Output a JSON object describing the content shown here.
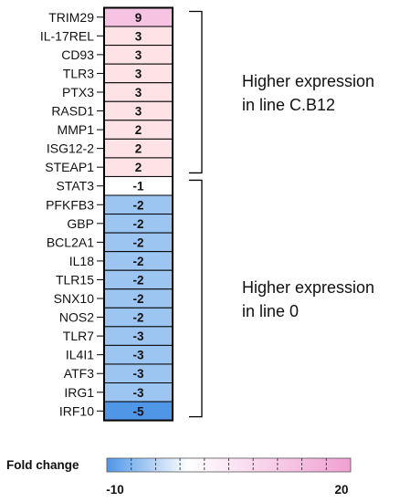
{
  "chart_data": {
    "type": "heatmap",
    "title": "",
    "genes": [
      "TRIM29",
      "IL-17REL",
      "CD93",
      "TLR3",
      "PTX3",
      "RASD1",
      "MMP1",
      "ISG12-2",
      "STEAP1",
      "STAT3",
      "PFKFB3",
      "GBP",
      "BCL2A1",
      "IL18",
      "TLR15",
      "SNX10",
      "NOS2",
      "TLR7",
      "IL4I1",
      "ATF3",
      "IRG1",
      "IRF10"
    ],
    "values": [
      9,
      3,
      3,
      3,
      3,
      3,
      2,
      2,
      2,
      -1,
      -2,
      -2,
      -2,
      -2,
      -2,
      -2,
      -2,
      -3,
      -3,
      -3,
      -3,
      -5
    ],
    "value_labels": [
      "9",
      "3",
      "3",
      "3",
      "3",
      "3",
      "2",
      "2",
      "2",
      "-1",
      "-2",
      "-2",
      "-2",
      "-2",
      "-2",
      "-2",
      "-2",
      "-3",
      "-3",
      "-3",
      "-3",
      "-5"
    ],
    "groups": [
      {
        "label_lines": [
          "Higher expression",
          "in line C.B12"
        ],
        "from": 0,
        "to": 8
      },
      {
        "label_lines": [
          "Higher expression",
          "in line 0"
        ],
        "from": 9,
        "to": 21
      }
    ],
    "legend": {
      "title": "Fold change",
      "min_label": "-10",
      "max_label": "20",
      "range": [
        -10,
        20
      ],
      "stops": [
        {
          "value": -10,
          "color": "#4f96e6"
        },
        {
          "value": 0,
          "color": "#ffffff"
        },
        {
          "value": 20,
          "color": "#f0a0d2"
        }
      ]
    },
    "colors": {
      "neg_strong": "#4f96e6",
      "neg_mid": "#9cc5f2",
      "neutral": "#ffffff",
      "pos_light": "#fde3e6",
      "pos_strong": "#f6c3e2"
    }
  }
}
